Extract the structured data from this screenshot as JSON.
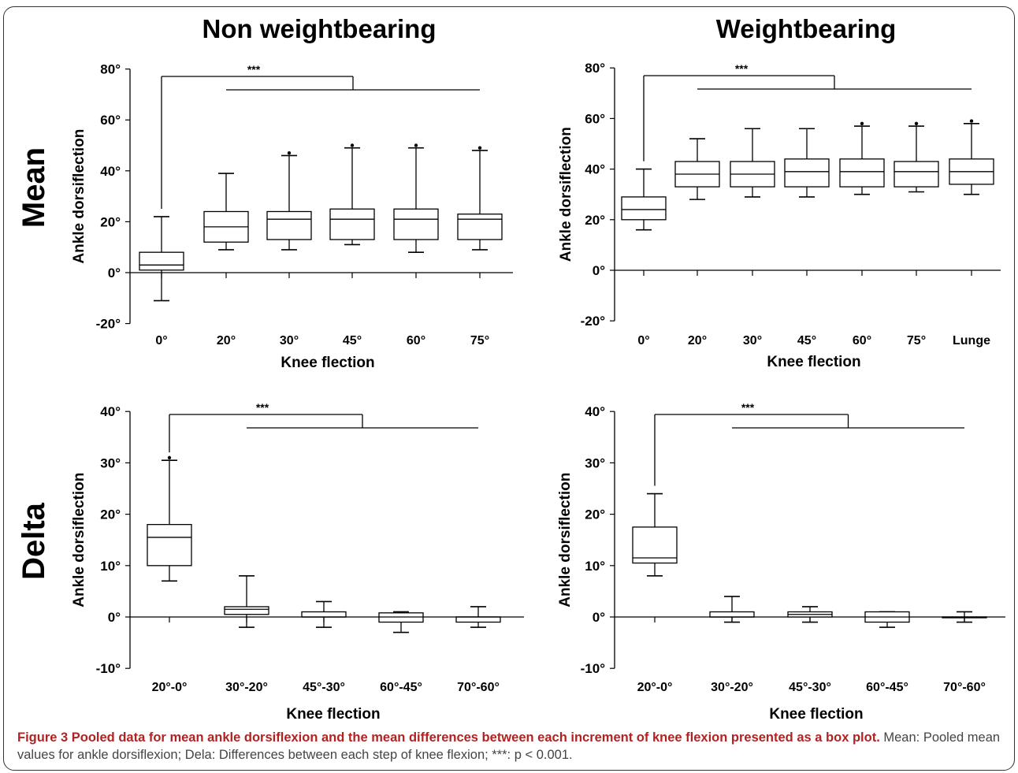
{
  "column_titles": [
    "Non weightbearing",
    "Weightbearing"
  ],
  "row_titles": [
    "Mean",
    "Delta"
  ],
  "caption": {
    "bold": "Figure 3 Pooled data for mean ankle dorsiflexion and the mean differences between each increment of knee flexion presented as a box plot.",
    "rest": " Mean: Pooled mean values for ankle dorsiflexion; Dela: Differences between each step of knee flexion; ***: p < 0.001."
  },
  "chart_data": [
    {
      "type": "box",
      "panel": "Non weightbearing – Mean",
      "xlabel": "Knee flection",
      "ylabel": "Ankle dorsiflection",
      "ylim": [
        -20,
        80
      ],
      "yticks": [
        "80°",
        "60°",
        "40°",
        "20°",
        "0°",
        "-20°"
      ],
      "categories": [
        "0°",
        "20°",
        "30°",
        "45°",
        "60°",
        "75°"
      ],
      "boxes": [
        {
          "min": -11,
          "q1": 1,
          "median": 3,
          "q3": 8,
          "max": 22,
          "outlier": null
        },
        {
          "min": 9,
          "q1": 12,
          "median": 18,
          "q3": 24,
          "max": 39,
          "outlier": null
        },
        {
          "min": 9,
          "q1": 13,
          "median": 21,
          "q3": 24,
          "max": 46,
          "outlier": 47
        },
        {
          "min": 11,
          "q1": 13,
          "median": 21,
          "q3": 25,
          "max": 49,
          "outlier": 50
        },
        {
          "min": 8,
          "q1": 13,
          "median": 21,
          "q3": 25,
          "max": 49,
          "outlier": 50
        },
        {
          "min": 9,
          "q1": 13,
          "median": 21,
          "q3": 23,
          "max": 48,
          "outlier": 49
        }
      ],
      "significance": {
        "label": "***",
        "from_category": "0°",
        "to_categories": [
          "20°",
          "75°"
        ]
      }
    },
    {
      "type": "box",
      "panel": "Weightbearing – Mean",
      "xlabel": "Knee flection",
      "ylabel": "Ankle dorsiflection",
      "ylim": [
        -20,
        80
      ],
      "yticks": [
        "80°",
        "60°",
        "40°",
        "20°",
        "0°",
        "-20°"
      ],
      "categories": [
        "0°",
        "20°",
        "30°",
        "45°",
        "60°",
        "75°",
        "Lunge"
      ],
      "boxes": [
        {
          "min": 16,
          "q1": 20,
          "median": 24,
          "q3": 29,
          "max": 40,
          "outlier": null
        },
        {
          "min": 28,
          "q1": 33,
          "median": 38,
          "q3": 43,
          "max": 52,
          "outlier": null
        },
        {
          "min": 29,
          "q1": 33,
          "median": 38,
          "q3": 43,
          "max": 56,
          "outlier": null
        },
        {
          "min": 29,
          "q1": 33,
          "median": 39,
          "q3": 44,
          "max": 56,
          "outlier": null
        },
        {
          "min": 30,
          "q1": 33,
          "median": 39,
          "q3": 44,
          "max": 57,
          "outlier": 58
        },
        {
          "min": 31,
          "q1": 33,
          "median": 39,
          "q3": 43,
          "max": 57,
          "outlier": 58
        },
        {
          "min": 30,
          "q1": 34,
          "median": 39,
          "q3": 44,
          "max": 58,
          "outlier": 59
        }
      ],
      "significance": {
        "label": "***",
        "from_category": "0°",
        "to_categories": [
          "20°",
          "Lunge"
        ]
      }
    },
    {
      "type": "box",
      "panel": "Non weightbearing – Delta",
      "xlabel": "Knee flection",
      "ylabel": "Ankle dorsiflection",
      "ylim": [
        -10,
        40
      ],
      "yticks": [
        "40°",
        "30°",
        "20°",
        "10°",
        "0°",
        "-10°"
      ],
      "categories": [
        "20°-0°",
        "30°-20°",
        "45°-30°",
        "60°-45°",
        "70°-60°"
      ],
      "boxes": [
        {
          "min": 7,
          "q1": 10,
          "median": 15.5,
          "q3": 18,
          "max": 30.5,
          "outlier": 31
        },
        {
          "min": -2,
          "q1": 0.5,
          "median": 1.5,
          "q3": 2,
          "max": 8,
          "outlier": null
        },
        {
          "min": -2,
          "q1": 0,
          "median": 0,
          "q3": 1,
          "max": 3,
          "outlier": null
        },
        {
          "min": -3,
          "q1": -1,
          "median": 0,
          "q3": 0.8,
          "max": 1,
          "outlier": null
        },
        {
          "min": -2,
          "q1": -1,
          "median": 0,
          "q3": 0,
          "max": 2,
          "outlier": null
        }
      ],
      "significance": {
        "label": "***",
        "from_category": "20°-0°",
        "to_categories": [
          "30°-20°",
          "70°-60°"
        ]
      }
    },
    {
      "type": "box",
      "panel": "Weightbearing – Delta",
      "xlabel": "Knee flection",
      "ylabel": "Ankle dorsiflection",
      "ylim": [
        -10,
        40
      ],
      "yticks": [
        "40°",
        "30°",
        "20°",
        "10°",
        "0°",
        "-10°"
      ],
      "categories": [
        "20°-0°",
        "30°-20°",
        "45°-30°",
        "60°-45°",
        "70°-60°"
      ],
      "boxes": [
        {
          "min": 8,
          "q1": 10.5,
          "median": 11.5,
          "q3": 17.5,
          "max": 24,
          "outlier": null
        },
        {
          "min": -1,
          "q1": 0,
          "median": 0,
          "q3": 1,
          "max": 4,
          "outlier": null
        },
        {
          "min": -1,
          "q1": 0,
          "median": 0.5,
          "q3": 1,
          "max": 2,
          "outlier": null
        },
        {
          "min": -2,
          "q1": -1,
          "median": 0,
          "q3": 1,
          "max": 1,
          "outlier": null
        },
        {
          "min": -1,
          "q1": 0,
          "median": 0,
          "q3": 0,
          "max": 1,
          "outlier": null
        }
      ],
      "significance": {
        "label": "***",
        "from_category": "20°-0°",
        "to_categories": [
          "30°-20°",
          "70°-60°"
        ]
      }
    }
  ]
}
